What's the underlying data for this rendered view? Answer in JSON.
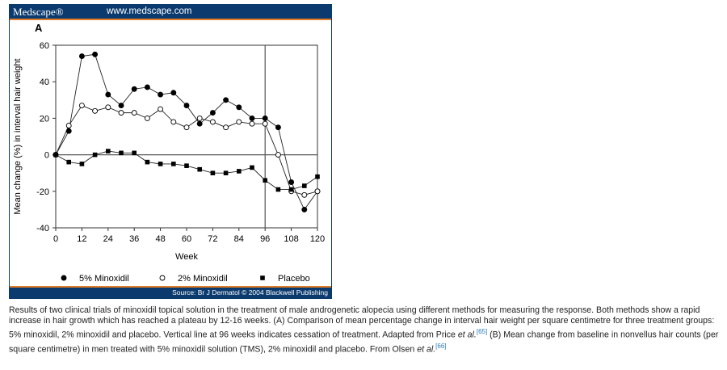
{
  "header": {
    "brand": "Medscape®",
    "url": "www.medscape.com"
  },
  "footer": {
    "source": "Source: Br J Dermatol © 2004 Blackwell Publishing"
  },
  "chart_data": {
    "type": "line",
    "panel_label": "A",
    "xlabel": "Week",
    "ylabel": "Mean change (%) in interval hair weight",
    "xlim": [
      0,
      120
    ],
    "ylim": [
      -40,
      60
    ],
    "xticks": [
      0,
      12,
      24,
      36,
      48,
      60,
      72,
      84,
      96,
      108,
      120
    ],
    "yticks": [
      -40,
      -20,
      0,
      20,
      40,
      60
    ],
    "reference_lines": {
      "vertical_x": 96,
      "horizontal_y": 0
    },
    "x": [
      0,
      6,
      12,
      18,
      24,
      30,
      36,
      42,
      48,
      54,
      60,
      66,
      72,
      78,
      84,
      90,
      96,
      102,
      108,
      114,
      120
    ],
    "series": [
      {
        "name": "5% Minoxidil",
        "marker": "filled-circle",
        "values": [
          0,
          13,
          54,
          55,
          33,
          27,
          36,
          37,
          33,
          34,
          27,
          17,
          23,
          30,
          26,
          20,
          20,
          15,
          -15,
          -30,
          -20
        ]
      },
      {
        "name": "2% Minoxidil",
        "marker": "open-circle",
        "values": [
          0,
          16,
          27,
          24,
          26,
          23,
          23,
          20,
          25,
          18,
          15,
          20,
          18,
          15,
          18,
          17,
          17,
          0,
          -20,
          -22,
          -20
        ]
      },
      {
        "name": "Placebo",
        "marker": "filled-square",
        "values": [
          0,
          -4,
          -5,
          0,
          2,
          1,
          1,
          -4,
          -5,
          -5,
          -6,
          -8,
          -10,
          -10,
          -9,
          -7,
          -14,
          -19,
          -19,
          -17,
          -12
        ]
      }
    ],
    "legend_position": "bottom"
  },
  "caption": {
    "part1": "Results of two clinical trials of minoxidil topical solution in the treatment of male androgenetic alopecia using different methods for measuring the response. Both methods show a rapid increase in hair growth which has reached a plateau by 12-16 weeks. (A) Comparison of mean percentage change in interval hair weight per square centimetre for three treatment groups: 5% minoxidil, 2% minoxidil and placebo. Vertical line at 96 weeks indicates cessation of treatment. Adapted from Price ",
    "etal1": "et al.",
    "ref1": "[65]",
    "part2": " (B) Mean change from baseline in nonvellus hair counts (per square centimetre) in men treated with 5% minoxidil solution (TMS), 2% minoxidil and placebo. From Olsen ",
    "etal2": "et al.",
    "ref2": "[66]"
  }
}
